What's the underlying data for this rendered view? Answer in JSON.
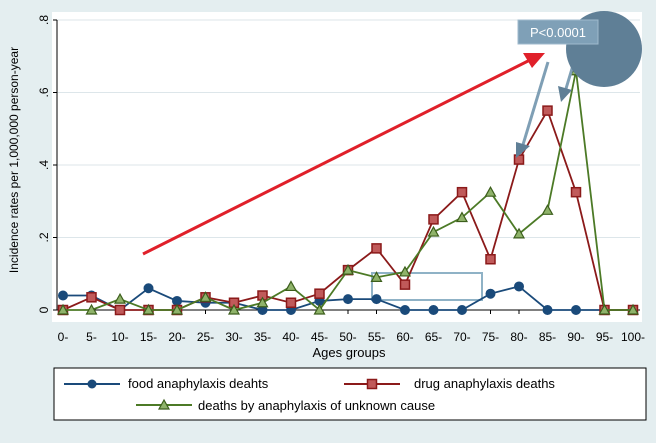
{
  "chart_data": {
    "type": "line",
    "title": "",
    "xlabel": "Ages groups",
    "ylabel": "Incidence rates per 1,000,000 person-year",
    "categories": [
      "0-",
      "5-",
      "10-",
      "15-",
      "20-",
      "25-",
      "30-",
      "35-",
      "40-",
      "45-",
      "50-",
      "55-",
      "60-",
      "65-",
      "70-",
      "75-",
      "80-",
      "85-",
      "90-",
      "95-",
      "100-"
    ],
    "ylim": [
      0,
      0.8
    ],
    "yticks": [
      0,
      0.2,
      0.4,
      0.6,
      0.8
    ],
    "ytick_labels": [
      "0",
      ".2",
      ".4",
      ".6",
      ".8"
    ],
    "grid": "horizontal",
    "legend_position": "bottom",
    "series": [
      {
        "name": "food anaphylaxis deahts",
        "color": "#1a4a7a",
        "marker": "circle",
        "values": [
          0.04,
          0.04,
          0.0,
          0.06,
          0.025,
          0.02,
          0.02,
          0.0,
          0.0,
          0.025,
          0.03,
          0.03,
          0.0,
          0.0,
          0.0,
          0.045,
          0.065,
          0.0,
          0.0,
          0.0,
          0.0
        ]
      },
      {
        "name": "drug anaphylaxis deaths",
        "color": "#8b1a1a",
        "marker": "square",
        "values": [
          0.0,
          0.035,
          0.0,
          0.0,
          0.0,
          0.035,
          0.02,
          0.04,
          0.02,
          0.045,
          0.11,
          0.17,
          0.07,
          0.25,
          0.325,
          0.14,
          0.415,
          0.55,
          0.325,
          0.0,
          0.0
        ]
      },
      {
        "name": "deaths by anaphylaxis of unknown cause",
        "color": "#4c7a26",
        "marker": "triangle",
        "values": [
          0.0,
          0.0,
          0.03,
          0.0,
          0.0,
          0.035,
          0.0,
          0.02,
          0.065,
          0.0,
          0.11,
          0.09,
          0.105,
          0.215,
          0.255,
          0.325,
          0.21,
          0.275,
          0.66,
          0.0,
          0.0
        ]
      }
    ],
    "annotations": {
      "pvalue_label": "P<0.0001",
      "trend_arrow_color": "#e0202a",
      "callout_color": "#5f7f96",
      "highlight_box_color": "#8fb2c6"
    }
  }
}
